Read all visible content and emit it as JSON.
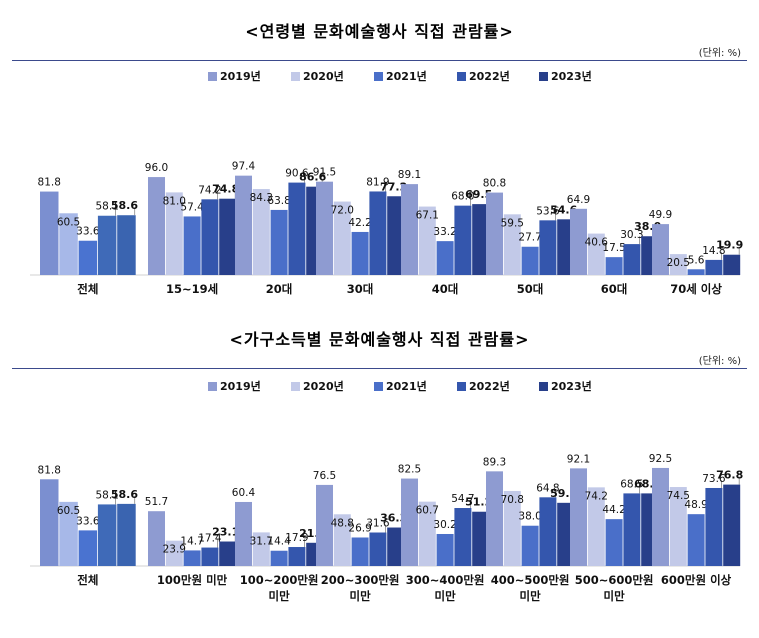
{
  "chart_data": [
    {
      "type": "bar",
      "title": "<연령별 문화예술행사 직접 관람률>",
      "unit_label": "(단위: %)",
      "categories": [
        "전체",
        "15~19세",
        "20대",
        "30대",
        "40대",
        "50대",
        "60대",
        "70세 이상"
      ],
      "series": [
        {
          "name": "2019년",
          "color": "#8e9bd1",
          "values": [
            81.8,
            96.0,
            97.4,
            91.5,
            89.1,
            80.8,
            64.9,
            49.9
          ]
        },
        {
          "name": "2020년",
          "color": "#c2c9e8",
          "values": [
            60.5,
            81.0,
            84.3,
            72.0,
            67.1,
            59.5,
            40.6,
            20.5
          ]
        },
        {
          "name": "2021년",
          "color": "#4a6fc9",
          "values": [
            33.6,
            57.4,
            63.8,
            42.2,
            33.2,
            27.7,
            17.5,
            5.6
          ]
        },
        {
          "name": "2022년",
          "color": "#3456ad",
          "values": [
            58.1,
            74.2,
            90.6,
            81.9,
            68.0,
            53.6,
            30.3,
            14.8
          ]
        },
        {
          "name": "2023년",
          "color": "#283f8a",
          "values": [
            58.6,
            74.8,
            86.6,
            77.2,
            69.5,
            54.6,
            38.0,
            19.9
          ]
        }
      ],
      "overall_series": [
        {
          "name": "2019년",
          "color": "#7b8fd0"
        },
        {
          "name": "2020년",
          "color": "#a7b8e8"
        },
        {
          "name": "2021년",
          "color": "#4a73d0"
        },
        {
          "name": "2022년",
          "color": "#3f6ab8"
        },
        {
          "name": "2023년",
          "color": "#3a64b0"
        }
      ],
      "ylim": [
        0,
        100
      ],
      "highlight_series": "2023년"
    },
    {
      "type": "bar",
      "title": "<가구소득별 문화예술행사 직접 관람률>",
      "unit_label": "(단위: %)",
      "categories": [
        [
          "전체"
        ],
        [
          "100만원 미만"
        ],
        [
          "100~200만원",
          "미만"
        ],
        [
          "200~300만원",
          "미만"
        ],
        [
          "300~400만원",
          "미만"
        ],
        [
          "400~500만원",
          "미만"
        ],
        [
          "500~600만원",
          "미만"
        ],
        [
          "600만원 이상"
        ]
      ],
      "series": [
        {
          "name": "2019년",
          "color": "#8e9bd1",
          "values": [
            81.8,
            51.7,
            60.4,
            76.5,
            82.5,
            89.3,
            92.1,
            92.5
          ]
        },
        {
          "name": "2020년",
          "color": "#c2c9e8",
          "values": [
            60.5,
            23.9,
            31.7,
            48.8,
            60.7,
            70.8,
            74.2,
            74.5
          ]
        },
        {
          "name": "2021년",
          "color": "#4a6fc9",
          "values": [
            33.6,
            14.7,
            14.4,
            26.9,
            30.2,
            38.0,
            44.2,
            48.9
          ]
        },
        {
          "name": "2022년",
          "color": "#3456ad",
          "values": [
            58.1,
            17.4,
            17.9,
            31.6,
            54.7,
            64.8,
            68.5,
            73.6
          ]
        },
        {
          "name": "2023년",
          "color": "#283f8a",
          "values": [
            58.6,
            23.1,
            21.9,
            36.3,
            51.2,
            59.6,
            68.5,
            76.8
          ]
        }
      ],
      "overall_series": [
        {
          "name": "2019년",
          "color": "#7b8fd0"
        },
        {
          "name": "2020년",
          "color": "#a7b8e8"
        },
        {
          "name": "2021년",
          "color": "#4a73d0"
        },
        {
          "name": "2022년",
          "color": "#3f6ab8"
        },
        {
          "name": "2023년",
          "color": "#3a64b0"
        }
      ],
      "ylim": [
        0,
        100
      ],
      "highlight_series": "2023년"
    }
  ]
}
